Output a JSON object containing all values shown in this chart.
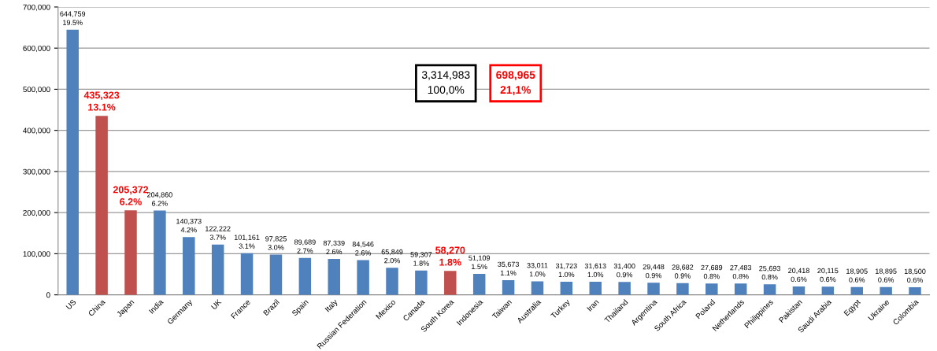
{
  "chart_data": {
    "type": "bar",
    "categories": [
      "US",
      "China",
      "Japan",
      "India",
      "Germany",
      "UK",
      "France",
      "Brazil",
      "Spain",
      "Italy",
      "Russian Federation",
      "Mexico",
      "Canada",
      "South Korea",
      "Indonesia",
      "Taiwan",
      "Australia",
      "Turkey",
      "Iran",
      "Thailand",
      "Argentina",
      "South Africa",
      "Poland",
      "Netherlands",
      "Philippines",
      "Pakistan",
      "Saudi Arabia",
      "Egypt",
      "Ukraine",
      "Colombia"
    ],
    "values": [
      644759,
      435323,
      205372,
      204860,
      140373,
      122222,
      101161,
      97825,
      89689,
      87339,
      84546,
      65849,
      59307,
      58270,
      51109,
      35673,
      33011,
      31723,
      31613,
      31400,
      29448,
      28682,
      27689,
      27483,
      25693,
      20418,
      20115,
      18905,
      18895,
      18500
    ],
    "colors": [
      "#4f81bd",
      "#c0504d",
      "#c0504d",
      "#4f81bd",
      "#4f81bd",
      "#4f81bd",
      "#4f81bd",
      "#4f81bd",
      "#4f81bd",
      "#4f81bd",
      "#4f81bd",
      "#4f81bd",
      "#4f81bd",
      "#c0504d",
      "#4f81bd",
      "#4f81bd",
      "#4f81bd",
      "#4f81bd",
      "#4f81bd",
      "#4f81bd",
      "#4f81bd",
      "#4f81bd",
      "#4f81bd",
      "#4f81bd",
      "#4f81bd",
      "#4f81bd",
      "#4f81bd",
      "#4f81bd",
      "#4f81bd",
      "#4f81bd"
    ],
    "value_labels": [
      "644,759\n19.5%",
      "435,323\n13.1%",
      "205,372\n6.2%",
      "204,860\n6.2%",
      "140,373\n4.2%",
      "122,222\n3.7%",
      "101,161\n3.1%",
      "97,825\n3.0%",
      "89,689\n2.7%",
      "87,339\n2.6%",
      "84,546\n2.6%",
      "65,849\n2.0%",
      "59,307\n1.8%",
      "58,270\n1.8%",
      "51,109\n1.5%",
      "35,673\n1.1%",
      "33,011\n1.0%",
      "31,723\n1.0%",
      "31,613\n1.0%",
      "31,400\n0.9%",
      "29,448\n0.9%",
      "28,682\n0.9%",
      "27,689\n0.8%",
      "27,483\n0.8%",
      "25,693\n0.8%",
      "20,418\n0.6%",
      "20,115\n0.6%",
      "18,905\n0.6%",
      "18,895\n0.6%",
      "18,500\n0.6%"
    ],
    "ylim": [
      0,
      700000
    ],
    "yticks": [
      0,
      {
        "value": 100000,
        "label": "100,000"
      },
      {
        "value": 200000,
        "label": "200,000"
      },
      {
        "value": 300000,
        "label": "300,000"
      },
      {
        "value": 400000,
        "label": "400,000"
      },
      {
        "value": 500000,
        "label": "500,000"
      },
      {
        "value": 600000,
        "label": "600,000"
      },
      {
        "value": 700000,
        "label": "700,000"
      }
    ],
    "grid": "y",
    "legend": false,
    "annotations": [
      "3,314,983\n100,0%",
      "698,965\n21,1%"
    ]
  }
}
